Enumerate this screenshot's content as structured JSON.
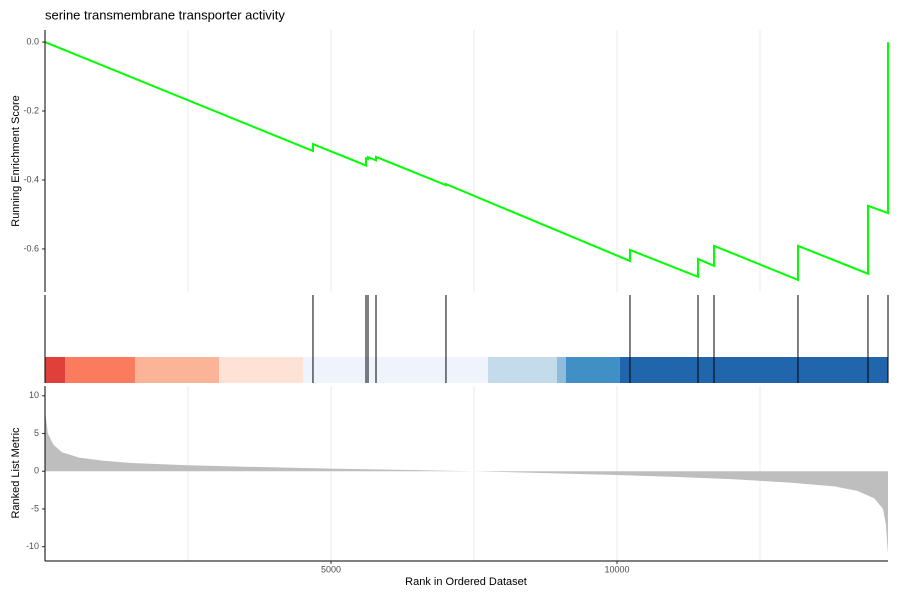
{
  "chart_data": [
    {
      "type": "line",
      "title": "serine transmembrane transporter activity",
      "ylabel": "Running Enrichment Score",
      "color": "#00ff00",
      "x": [
        0,
        4685,
        4685,
        5612,
        5612,
        5647,
        5647,
        5787,
        5787,
        7010,
        7010,
        10227,
        10227,
        11416,
        11416,
        11696,
        11696,
        13164,
        13164,
        14388,
        14388,
        14738,
        14738
      ],
      "values": [
        0,
        -0.316,
        -0.296,
        -0.358,
        -0.337,
        -0.339,
        -0.334,
        -0.343,
        -0.333,
        -0.415,
        -0.412,
        -0.635,
        -0.603,
        -0.681,
        -0.629,
        -0.649,
        -0.591,
        -0.69,
        -0.591,
        -0.672,
        -0.475,
        -0.496,
        0
      ],
      "xlim": [
        0,
        14738
      ],
      "ylim": [
        -0.725,
        0.035
      ],
      "yticks": [
        {
          "value": 0,
          "label": "0.0"
        },
        -0.2,
        -0.4,
        -0.6
      ],
      "xgrid": [
        2500,
        5000,
        7500,
        10000,
        12500
      ]
    },
    {
      "type": "rug",
      "xlim": [
        0,
        14738
      ],
      "hits": [
        4685,
        5612,
        5647,
        5787,
        7010,
        10227,
        11416,
        11696,
        13164,
        14388,
        14738
      ],
      "bands": {
        "edges": [
          0,
          350,
          1573,
          3042,
          4510,
          7745,
          8951,
          9108,
          10052,
          14738
        ],
        "colors": [
          "#e0403a",
          "#fb7b5f",
          "#fcb499",
          "#fee2d6",
          "#eff3fb",
          "#c3dbea",
          "#8fbcdb",
          "#4090c5",
          "#2166ac"
        ]
      }
    },
    {
      "type": "area",
      "ylabel": "Ranked List Metric",
      "xlabel": "Rank in Ordered Dataset",
      "color": "#bebebe",
      "x": [
        0,
        50,
        150,
        300,
        600,
        1000,
        1500,
        2500,
        3500,
        5000,
        6500,
        7500,
        8500,
        10000,
        11000,
        12000,
        13000,
        13800,
        14200,
        14500,
        14650,
        14700,
        14738
      ],
      "values": [
        8,
        5,
        3.5,
        2.5,
        1.8,
        1.4,
        1.1,
        0.8,
        0.6,
        0.35,
        0.15,
        0,
        -0.2,
        -0.5,
        -0.75,
        -1.05,
        -1.5,
        -2.0,
        -2.6,
        -3.6,
        -5,
        -7,
        -11
      ],
      "xlim": [
        0,
        14738
      ],
      "ylim": [
        -11.9,
        11.3
      ],
      "yticks": [
        10,
        5,
        0,
        -5,
        -10
      ],
      "xticks": [
        5000,
        10000
      ],
      "xgrid": [
        2500,
        5000,
        7500,
        10000,
        12500
      ]
    }
  ]
}
